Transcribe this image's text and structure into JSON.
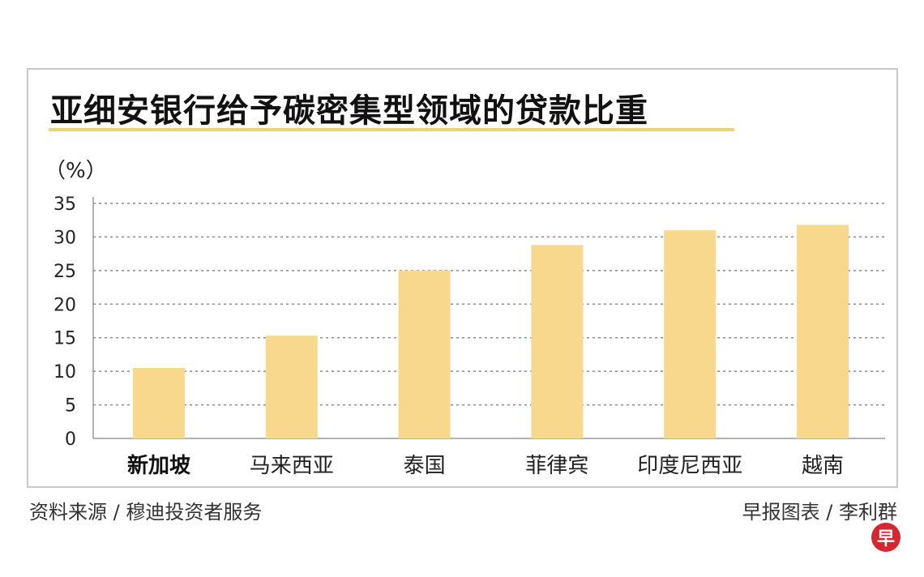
{
  "chart_data": {
    "type": "bar",
    "title": "亚细安银行给予碳密集型领域的贷款比重",
    "ylabel": "（%）",
    "xlabel": "",
    "categories": [
      "新加坡",
      "马来西亚",
      "泰国",
      "菲律宾",
      "印度尼西亚",
      "越南"
    ],
    "values": [
      10.5,
      15.3,
      25.0,
      28.8,
      31.0,
      31.8
    ],
    "ylim": [
      0,
      35
    ],
    "yticks": [
      0,
      5,
      10,
      15,
      20,
      25,
      30,
      35
    ],
    "grid": true,
    "highlight_category": "新加坡",
    "bar_color": "#f8d88c",
    "grid_color": "#8a8a8a"
  },
  "footer": {
    "source": "资料来源 / 穆迪投资者服务",
    "credit": "早报图表 / 李利群",
    "logo_text": "早"
  },
  "colors": {
    "title_rule": "#f0d27a",
    "logo_bg": "#d7262f"
  }
}
